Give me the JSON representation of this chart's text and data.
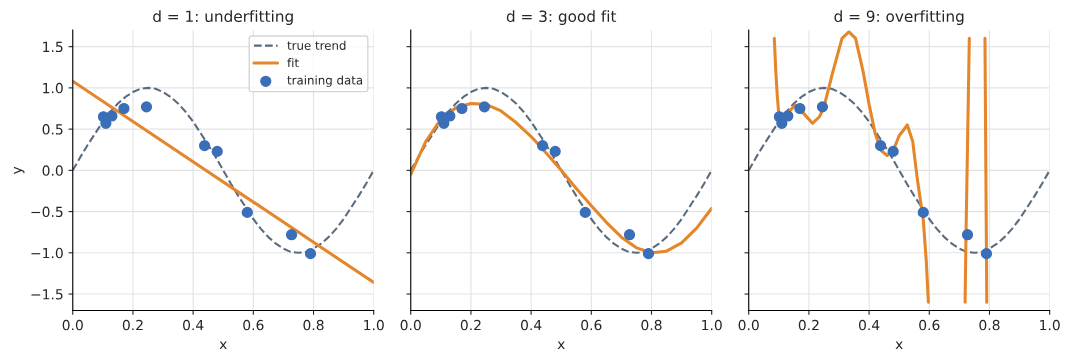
{
  "chart_data": [
    {
      "type": "line",
      "title": "d = 1: underfitting",
      "xlabel": "x",
      "ylabel": "y",
      "xlim": [
        0,
        1
      ],
      "ylim": [
        -1.7,
        1.7
      ],
      "xticks": [
        {
          "value": 0,
          "label": "0.0"
        },
        {
          "value": 0.2,
          "label": "0.2"
        },
        {
          "value": 0.4,
          "label": "0.4"
        },
        {
          "value": 0.6,
          "label": "0.6"
        },
        {
          "value": 0.8,
          "label": "0.8"
        },
        {
          "value": 1,
          "label": "1.0"
        }
      ],
      "yticks": [
        {
          "value": -1.5,
          "label": "−1.5"
        },
        {
          "value": -1,
          "label": "−1.0"
        },
        {
          "value": -0.5,
          "label": "−0.5"
        },
        {
          "value": 0,
          "label": "0.0"
        },
        {
          "value": 0.5,
          "label": "0.5"
        },
        {
          "value": 1,
          "label": "1.0"
        },
        {
          "value": 1.5,
          "label": "1.5"
        }
      ],
      "grid": true,
      "legend": "top right",
      "series": [
        {
          "name": "true trend",
          "type": "line",
          "line_style": "dashed",
          "color": "#5a6b80",
          "x": [
            0,
            0.025,
            0.05,
            0.075,
            0.1,
            0.125,
            0.15,
            0.175,
            0.2,
            0.225,
            0.25,
            0.275,
            0.3,
            0.325,
            0.35,
            0.375,
            0.4,
            0.425,
            0.45,
            0.475,
            0.5,
            0.525,
            0.55,
            0.575,
            0.6,
            0.625,
            0.65,
            0.675,
            0.7,
            0.725,
            0.75,
            0.775,
            0.8,
            0.825,
            0.85,
            0.875,
            0.9,
            0.925,
            0.95,
            0.975,
            1
          ],
          "values": [
            0,
            0.16,
            0.31,
            0.45,
            0.59,
            0.71,
            0.81,
            0.89,
            0.95,
            0.99,
            1.0,
            0.99,
            0.95,
            0.89,
            0.81,
            0.71,
            0.59,
            0.45,
            0.31,
            0.16,
            0,
            -0.16,
            -0.31,
            -0.45,
            -0.59,
            -0.71,
            -0.81,
            -0.89,
            -0.95,
            -0.99,
            -1.0,
            -0.99,
            -0.95,
            -0.89,
            -0.81,
            -0.71,
            -0.59,
            -0.45,
            -0.31,
            -0.16,
            0
          ]
        },
        {
          "name": "fit",
          "type": "line",
          "line_style": "solid",
          "color": "#e6862a",
          "x": [
            0,
            1
          ],
          "values": [
            1.08,
            -1.36
          ]
        },
        {
          "name": "training data",
          "type": "scatter",
          "marker": "circle",
          "color": "#3a6fb8",
          "x": [
            0.102,
            0.11,
            0.13,
            0.17,
            0.245,
            0.438,
            0.48,
            0.58,
            0.727,
            0.79
          ],
          "values": [
            0.65,
            0.57,
            0.66,
            0.75,
            0.77,
            0.3,
            0.23,
            -0.51,
            -0.78,
            -1.01
          ]
        }
      ]
    },
    {
      "type": "line",
      "title": "d = 3: good fit",
      "xlabel": "x",
      "xlim": [
        0,
        1
      ],
      "ylim": [
        -1.7,
        1.7
      ],
      "xticks": [
        {
          "value": 0,
          "label": "0.0"
        },
        {
          "value": 0.2,
          "label": "0.2"
        },
        {
          "value": 0.4,
          "label": "0.4"
        },
        {
          "value": 0.6,
          "label": "0.6"
        },
        {
          "value": 0.8,
          "label": "0.8"
        },
        {
          "value": 1,
          "label": "1.0"
        }
      ],
      "yticks": [
        -1.5,
        -1,
        -0.5,
        0,
        0.5,
        1,
        1.5
      ],
      "grid": true,
      "tick_labels": "x",
      "series": [
        {
          "type": "line",
          "line_style": "dashed",
          "color": "#5a6b80",
          "x": [
            0,
            0.025,
            0.05,
            0.075,
            0.1,
            0.125,
            0.15,
            0.175,
            0.2,
            0.225,
            0.25,
            0.275,
            0.3,
            0.325,
            0.35,
            0.375,
            0.4,
            0.425,
            0.45,
            0.475,
            0.5,
            0.525,
            0.55,
            0.575,
            0.6,
            0.625,
            0.65,
            0.675,
            0.7,
            0.725,
            0.75,
            0.775,
            0.8,
            0.825,
            0.85,
            0.875,
            0.9,
            0.925,
            0.95,
            0.975,
            1
          ],
          "values": [
            0,
            0.16,
            0.31,
            0.45,
            0.59,
            0.71,
            0.81,
            0.89,
            0.95,
            0.99,
            1.0,
            0.99,
            0.95,
            0.89,
            0.81,
            0.71,
            0.59,
            0.45,
            0.31,
            0.16,
            0,
            -0.16,
            -0.31,
            -0.45,
            -0.59,
            -0.71,
            -0.81,
            -0.89,
            -0.95,
            -0.99,
            -1.0,
            -0.99,
            -0.95,
            -0.89,
            -0.81,
            -0.71,
            -0.59,
            -0.45,
            -0.31,
            -0.16,
            0
          ]
        },
        {
          "type": "line",
          "line_style": "solid",
          "color": "#e6862a",
          "x": [
            0,
            0.05,
            0.1,
            0.15,
            0.2,
            0.25,
            0.3,
            0.35,
            0.4,
            0.45,
            0.5,
            0.55,
            0.6,
            0.65,
            0.7,
            0.75,
            0.8,
            0.85,
            0.9,
            0.95,
            1
          ],
          "values": [
            -0.05,
            0.35,
            0.62,
            0.76,
            0.81,
            0.8,
            0.72,
            0.58,
            0.41,
            0.21,
            0.0,
            -0.22,
            -0.43,
            -0.63,
            -0.81,
            -0.94,
            -1.0,
            -0.98,
            -0.88,
            -0.7,
            -0.46
          ]
        },
        {
          "type": "scatter",
          "marker": "circle",
          "color": "#3a6fb8",
          "x": [
            0.102,
            0.11,
            0.13,
            0.17,
            0.245,
            0.438,
            0.48,
            0.58,
            0.727,
            0.79
          ],
          "values": [
            0.65,
            0.57,
            0.66,
            0.75,
            0.77,
            0.3,
            0.23,
            -0.51,
            -0.78,
            -1.01
          ]
        }
      ]
    },
    {
      "type": "line",
      "title": "d = 9: overfitting",
      "xlabel": "x",
      "xlim": [
        0,
        1
      ],
      "ylim": [
        -1.7,
        1.7
      ],
      "xticks": [
        {
          "value": 0,
          "label": "0.0"
        },
        {
          "value": 0.2,
          "label": "0.2"
        },
        {
          "value": 0.4,
          "label": "0.4"
        },
        {
          "value": 0.6,
          "label": "0.6"
        },
        {
          "value": 0.8,
          "label": "0.8"
        },
        {
          "value": 1,
          "label": "1.0"
        }
      ],
      "yticks": [
        -1.5,
        -1,
        -0.5,
        0,
        0.5,
        1,
        1.5
      ],
      "grid": true,
      "tick_labels": "x",
      "series": [
        {
          "type": "line",
          "line_style": "dashed",
          "color": "#5a6b80",
          "x": [
            0,
            0.025,
            0.05,
            0.075,
            0.1,
            0.125,
            0.15,
            0.175,
            0.2,
            0.225,
            0.25,
            0.275,
            0.3,
            0.325,
            0.35,
            0.375,
            0.4,
            0.425,
            0.45,
            0.475,
            0.5,
            0.525,
            0.55,
            0.575,
            0.6,
            0.625,
            0.65,
            0.675,
            0.7,
            0.725,
            0.75,
            0.775,
            0.8,
            0.825,
            0.85,
            0.875,
            0.9,
            0.925,
            0.95,
            0.975,
            1
          ],
          "values": [
            0,
            0.16,
            0.31,
            0.45,
            0.59,
            0.71,
            0.81,
            0.89,
            0.95,
            0.99,
            1.0,
            0.99,
            0.95,
            0.89,
            0.81,
            0.71,
            0.59,
            0.45,
            0.31,
            0.16,
            0,
            -0.16,
            -0.31,
            -0.45,
            -0.59,
            -0.71,
            -0.81,
            -0.89,
            -0.95,
            -0.99,
            -1.0,
            -0.99,
            -0.95,
            -0.89,
            -0.81,
            -0.71,
            -0.59,
            -0.45,
            -0.31,
            -0.16,
            0
          ]
        },
        {
          "type": "line",
          "line_style": "solid",
          "color": "#e6862a",
          "x": [
            0.085,
            0.09,
            0.095,
            0.1,
            0.11,
            0.13,
            0.155,
            0.18,
            0.212,
            0.235,
            0.25,
            0.28,
            0.31,
            0.333,
            0.355,
            0.38,
            0.4,
            0.42,
            0.44,
            0.46,
            0.48,
            0.5,
            0.527,
            0.545,
            0.56,
            0.58,
            0.59,
            0.597,
            0.66,
            0.719,
            0.722,
            0.727,
            0.733,
            0.76,
            0.785,
            0.788,
            0.79,
            0.791
          ],
          "values": [
            1.6,
            1.2,
            0.9,
            0.68,
            0.6,
            0.7,
            0.79,
            0.7,
            0.57,
            0.65,
            0.77,
            1.2,
            1.6,
            1.68,
            1.6,
            1.2,
            0.8,
            0.45,
            0.24,
            0.18,
            0.24,
            0.42,
            0.55,
            0.35,
            -0.1,
            -0.6,
            -1.1,
            -1.6,
            null,
            -1.6,
            -0.78,
            0.3,
            1.6,
            null,
            1.6,
            0.0,
            -1.01,
            -1.6
          ]
        },
        {
          "type": "scatter",
          "marker": "circle",
          "color": "#3a6fb8",
          "x": [
            0.102,
            0.11,
            0.13,
            0.17,
            0.245,
            0.438,
            0.48,
            0.58,
            0.727,
            0.79
          ],
          "values": [
            0.65,
            0.57,
            0.66,
            0.75,
            0.77,
            0.3,
            0.23,
            -0.51,
            -0.78,
            -1.01
          ]
        }
      ]
    }
  ]
}
